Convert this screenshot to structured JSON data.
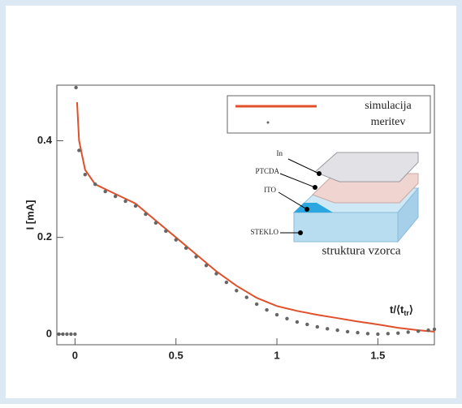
{
  "chart_data": {
    "type": "line",
    "ylabel": "I [mA]",
    "xlabel": {
      "main": "t/⟨t",
      "sub": "tr",
      "end": "⟩"
    },
    "xlim": [
      -0.09,
      1.78
    ],
    "ylim": [
      -0.022,
      0.515
    ],
    "xticks": [
      0,
      0.5,
      1,
      1.5
    ],
    "yticks": [
      0,
      0.2,
      0.4
    ],
    "legend": "upper right",
    "series": [
      {
        "name": "simulacija",
        "color": "#e0502a",
        "style": "line",
        "x": [
          0.01,
          0.02,
          0.05,
          0.1,
          0.2,
          0.3,
          0.4,
          0.5,
          0.6,
          0.7,
          0.8,
          0.9,
          1.0,
          1.1,
          1.2,
          1.3,
          1.4,
          1.5,
          1.6,
          1.7,
          1.78
        ],
        "values": [
          0.48,
          0.4,
          0.34,
          0.31,
          0.29,
          0.27,
          0.235,
          0.2,
          0.165,
          0.13,
          0.1,
          0.075,
          0.058,
          0.048,
          0.04,
          0.033,
          0.026,
          0.02,
          0.013,
          0.008,
          0.005
        ]
      },
      {
        "name": "meritev",
        "color": "#666666",
        "style": "points",
        "x": [
          -0.08,
          -0.06,
          -0.04,
          -0.02,
          0.0,
          0.005,
          0.02,
          0.05,
          0.1,
          0.15,
          0.2,
          0.25,
          0.3,
          0.35,
          0.4,
          0.45,
          0.5,
          0.55,
          0.6,
          0.65,
          0.7,
          0.75,
          0.8,
          0.85,
          0.9,
          0.95,
          1.0,
          1.05,
          1.1,
          1.15,
          1.2,
          1.25,
          1.3,
          1.35,
          1.4,
          1.45,
          1.5,
          1.55,
          1.6,
          1.65,
          1.7,
          1.75,
          1.78
        ],
        "values": [
          0.0,
          0.0,
          0.0,
          0.0,
          0.0,
          0.51,
          0.38,
          0.33,
          0.31,
          0.295,
          0.285,
          0.275,
          0.265,
          0.248,
          0.23,
          0.213,
          0.195,
          0.178,
          0.16,
          0.142,
          0.125,
          0.107,
          0.09,
          0.076,
          0.062,
          0.05,
          0.04,
          0.032,
          0.025,
          0.02,
          0.015,
          0.011,
          0.008,
          0.005,
          0.003,
          0.001,
          0.0,
          0.001,
          0.002,
          0.004,
          0.006,
          0.008,
          0.01
        ]
      }
    ],
    "inset": {
      "title": "struktura vzorca",
      "layers": [
        "In",
        "PTCDA",
        "ITO",
        "STEKLO"
      ]
    }
  }
}
